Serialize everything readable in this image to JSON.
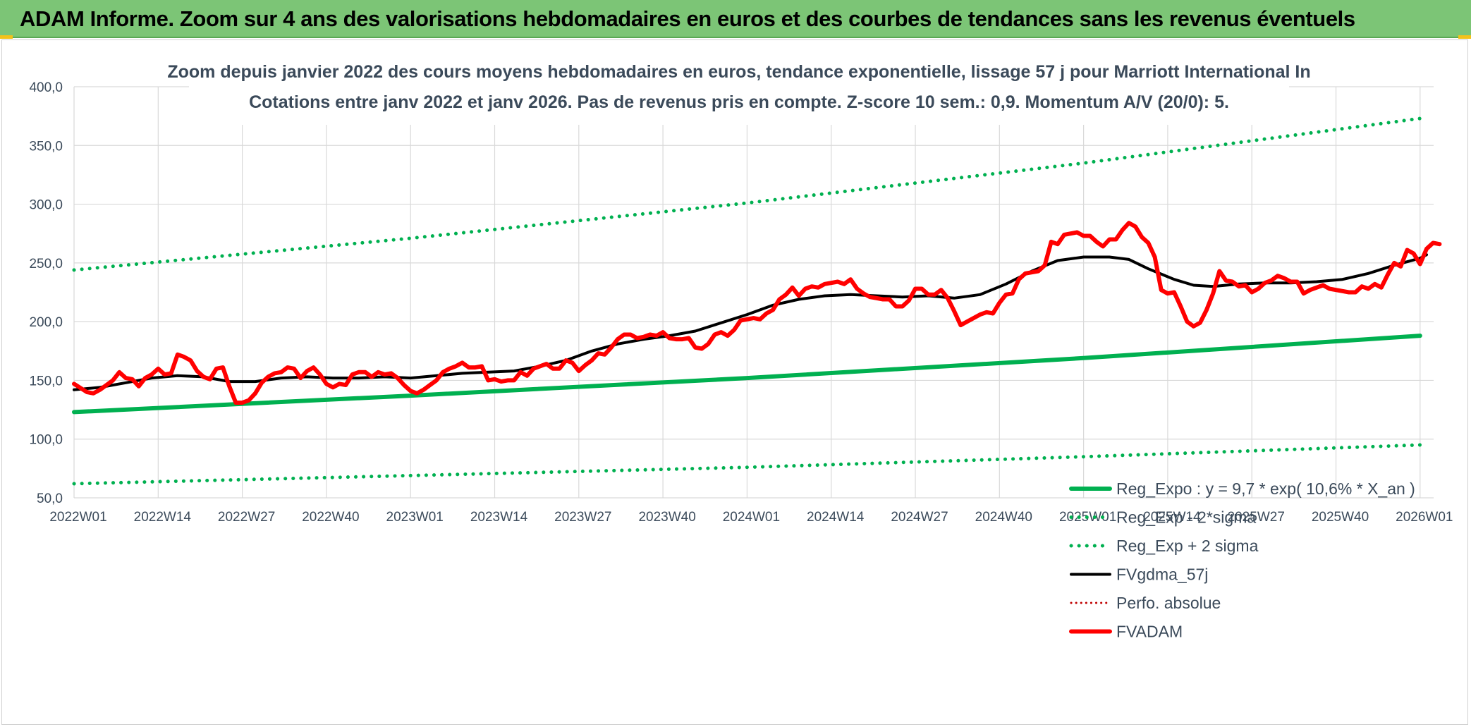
{
  "header": {
    "title": "ADAM Informe. Zoom sur 4 ans des valorisations hebdomadaires en euros et des courbes de tendances sans les revenus éventuels"
  },
  "colors": {
    "header_bg": "#7cc576",
    "trend_green": "#00b050",
    "price_red": "#ff0000",
    "smooth_black": "#000000",
    "grid": "#d9d9d9",
    "text": "#3b4a5a"
  },
  "chart_data": {
    "type": "line",
    "title": [
      "Zoom depuis janvier 2022 des cours moyens hebdomadaires en euros, tendance exponentielle, lissage 57 j pour Marriott International In",
      "Cotations entre janv 2022 et janv 2026. Pas de revenus pris en compte. Z-score 10 sem.: 0,9. Momentum A/V (20/0): 5."
    ],
    "xlabel": "",
    "ylabel": "",
    "ylim": [
      50,
      400
    ],
    "x_range_weeks": [
      0,
      209
    ],
    "yticks": [
      {
        "value": 50,
        "label": "50,0"
      },
      {
        "value": 100,
        "label": "100,0"
      },
      {
        "value": 150,
        "label": "150,0"
      },
      {
        "value": 200,
        "label": "200,0"
      },
      {
        "value": 250,
        "label": "250,0"
      },
      {
        "value": 300,
        "label": "300,0"
      },
      {
        "value": 350,
        "label": "350,0"
      },
      {
        "value": 400,
        "label": "400,0"
      }
    ],
    "xticks": [
      {
        "week": 0,
        "label": "2022W01"
      },
      {
        "week": 13,
        "label": "2022W14"
      },
      {
        "week": 26,
        "label": "2022W27"
      },
      {
        "week": 39,
        "label": "2022W40"
      },
      {
        "week": 52,
        "label": "2023W01"
      },
      {
        "week": 65,
        "label": "2023W14"
      },
      {
        "week": 78,
        "label": "2023W27"
      },
      {
        "week": 91,
        "label": "2023W40"
      },
      {
        "week": 104,
        "label": "2024W01"
      },
      {
        "week": 117,
        "label": "2024W14"
      },
      {
        "week": 130,
        "label": "2024W27"
      },
      {
        "week": 143,
        "label": "2024W40"
      },
      {
        "week": 156,
        "label": "2025W01"
      },
      {
        "week": 169,
        "label": "2025W14"
      },
      {
        "week": 182,
        "label": "2025W27"
      },
      {
        "week": 195,
        "label": "2025W40"
      },
      {
        "week": 208,
        "label": "2026W01"
      }
    ],
    "grid": true,
    "legend_position": "bottom-right",
    "series": [
      {
        "name": "Reg_Expo : y = 9,7 * exp( 10,6% *  X_an )",
        "style": "solid-thick",
        "color": "#00b050",
        "points": [
          [
            0,
            123
          ],
          [
            52,
            137
          ],
          [
            104,
            152
          ],
          [
            156,
            169
          ],
          [
            208,
            188
          ]
        ]
      },
      {
        "name": "Reg_Exp - 2*sigma",
        "style": "dotted",
        "color": "#00b050",
        "points": [
          [
            0,
            62
          ],
          [
            52,
            69
          ],
          [
            104,
            76
          ],
          [
            156,
            85
          ],
          [
            208,
            95
          ]
        ]
      },
      {
        "name": "Reg_Exp + 2 sigma",
        "style": "dotted",
        "color": "#00b050",
        "points": [
          [
            0,
            244
          ],
          [
            52,
            271
          ],
          [
            104,
            301
          ],
          [
            156,
            335
          ],
          [
            208,
            373
          ]
        ]
      },
      {
        "name": "FVgdma_57j",
        "style": "solid",
        "color": "#000000",
        "points": [
          [
            0,
            142
          ],
          [
            4,
            144
          ],
          [
            8,
            148
          ],
          [
            12,
            152
          ],
          [
            16,
            154
          ],
          [
            20,
            153
          ],
          [
            24,
            149
          ],
          [
            28,
            149
          ],
          [
            32,
            152
          ],
          [
            36,
            153
          ],
          [
            40,
            152
          ],
          [
            44,
            152
          ],
          [
            48,
            153
          ],
          [
            52,
            152
          ],
          [
            56,
            154
          ],
          [
            60,
            156
          ],
          [
            64,
            157
          ],
          [
            68,
            158
          ],
          [
            72,
            162
          ],
          [
            76,
            167
          ],
          [
            80,
            175
          ],
          [
            84,
            181
          ],
          [
            88,
            185
          ],
          [
            92,
            188
          ],
          [
            96,
            192
          ],
          [
            100,
            199
          ],
          [
            104,
            206
          ],
          [
            108,
            214
          ],
          [
            112,
            219
          ],
          [
            116,
            222
          ],
          [
            120,
            223
          ],
          [
            124,
            222
          ],
          [
            128,
            221
          ],
          [
            132,
            222
          ],
          [
            136,
            220
          ],
          [
            140,
            223
          ],
          [
            144,
            232
          ],
          [
            148,
            243
          ],
          [
            152,
            252
          ],
          [
            156,
            255
          ],
          [
            160,
            255
          ],
          [
            163,
            253
          ],
          [
            166,
            245
          ],
          [
            170,
            236
          ],
          [
            173,
            231
          ],
          [
            176,
            230
          ],
          [
            180,
            232
          ],
          [
            184,
            233
          ],
          [
            188,
            233
          ],
          [
            192,
            234
          ],
          [
            196,
            236
          ],
          [
            200,
            241
          ],
          [
            204,
            248
          ],
          [
            208,
            254
          ],
          [
            209,
            257
          ]
        ]
      },
      {
        "name": "Perfo. absolue",
        "style": "dotted-thin",
        "color": "#c00000",
        "points": []
      },
      {
        "name": "FVADAM",
        "style": "solid-thick",
        "color": "#ff0000",
        "points": [
          [
            0,
            147
          ],
          [
            2,
            140
          ],
          [
            3,
            139
          ],
          [
            4,
            142
          ],
          [
            6,
            150
          ],
          [
            7,
            157
          ],
          [
            8,
            152
          ],
          [
            9,
            151
          ],
          [
            10,
            145
          ],
          [
            11,
            152
          ],
          [
            12,
            155
          ],
          [
            13,
            160
          ],
          [
            14,
            155
          ],
          [
            15,
            156
          ],
          [
            16,
            172
          ],
          [
            17,
            170
          ],
          [
            18,
            167
          ],
          [
            19,
            158
          ],
          [
            20,
            153
          ],
          [
            21,
            151
          ],
          [
            22,
            160
          ],
          [
            23,
            161
          ],
          [
            24,
            145
          ],
          [
            25,
            131
          ],
          [
            26,
            131
          ],
          [
            27,
            133
          ],
          [
            28,
            139
          ],
          [
            29,
            148
          ],
          [
            30,
            153
          ],
          [
            31,
            156
          ],
          [
            32,
            157
          ],
          [
            33,
            161
          ],
          [
            34,
            160
          ],
          [
            35,
            152
          ],
          [
            36,
            158
          ],
          [
            37,
            161
          ],
          [
            38,
            155
          ],
          [
            39,
            147
          ],
          [
            40,
            144
          ],
          [
            41,
            147
          ],
          [
            42,
            146
          ],
          [
            43,
            155
          ],
          [
            44,
            157
          ],
          [
            45,
            157
          ],
          [
            46,
            153
          ],
          [
            47,
            157
          ],
          [
            48,
            155
          ],
          [
            49,
            156
          ],
          [
            50,
            152
          ],
          [
            51,
            146
          ],
          [
            52,
            141
          ],
          [
            53,
            139
          ],
          [
            54,
            142
          ],
          [
            55,
            146
          ],
          [
            56,
            150
          ],
          [
            57,
            157
          ],
          [
            58,
            160
          ],
          [
            59,
            162
          ],
          [
            60,
            165
          ],
          [
            61,
            161
          ],
          [
            62,
            161
          ],
          [
            63,
            162
          ],
          [
            64,
            150
          ],
          [
            65,
            151
          ],
          [
            66,
            149
          ],
          [
            67,
            150
          ],
          [
            68,
            150
          ],
          [
            69,
            157
          ],
          [
            70,
            154
          ],
          [
            71,
            160
          ],
          [
            72,
            162
          ],
          [
            73,
            164
          ],
          [
            74,
            160
          ],
          [
            75,
            160
          ],
          [
            76,
            167
          ],
          [
            77,
            165
          ],
          [
            78,
            158
          ],
          [
            79,
            163
          ],
          [
            80,
            167
          ],
          [
            81,
            173
          ],
          [
            82,
            172
          ],
          [
            83,
            178
          ],
          [
            84,
            185
          ],
          [
            85,
            189
          ],
          [
            86,
            189
          ],
          [
            87,
            186
          ],
          [
            88,
            187
          ],
          [
            89,
            189
          ],
          [
            90,
            188
          ],
          [
            91,
            191
          ],
          [
            92,
            186
          ],
          [
            93,
            185
          ],
          [
            94,
            185
          ],
          [
            95,
            186
          ],
          [
            96,
            178
          ],
          [
            97,
            177
          ],
          [
            98,
            181
          ],
          [
            99,
            189
          ],
          [
            100,
            191
          ],
          [
            101,
            188
          ],
          [
            102,
            193
          ],
          [
            103,
            201
          ],
          [
            104,
            202
          ],
          [
            105,
            203
          ],
          [
            106,
            202
          ],
          [
            107,
            207
          ],
          [
            108,
            210
          ],
          [
            109,
            219
          ],
          [
            110,
            223
          ],
          [
            111,
            229
          ],
          [
            112,
            222
          ],
          [
            113,
            228
          ],
          [
            114,
            230
          ],
          [
            115,
            229
          ],
          [
            116,
            232
          ],
          [
            117,
            233
          ],
          [
            118,
            234
          ],
          [
            119,
            232
          ],
          [
            120,
            236
          ],
          [
            121,
            228
          ],
          [
            122,
            224
          ],
          [
            123,
            221
          ],
          [
            124,
            220
          ],
          [
            125,
            219
          ],
          [
            126,
            219
          ],
          [
            127,
            213
          ],
          [
            128,
            213
          ],
          [
            129,
            218
          ],
          [
            130,
            228
          ],
          [
            131,
            228
          ],
          [
            132,
            223
          ],
          [
            133,
            223
          ],
          [
            134,
            227
          ],
          [
            135,
            220
          ],
          [
            136,
            209
          ],
          [
            137,
            197
          ],
          [
            138,
            200
          ],
          [
            139,
            203
          ],
          [
            140,
            206
          ],
          [
            141,
            208
          ],
          [
            142,
            207
          ],
          [
            143,
            216
          ],
          [
            144,
            223
          ],
          [
            145,
            224
          ],
          [
            146,
            236
          ],
          [
            147,
            241
          ],
          [
            148,
            242
          ],
          [
            149,
            243
          ],
          [
            150,
            248
          ],
          [
            151,
            268
          ],
          [
            152,
            266
          ],
          [
            153,
            274
          ],
          [
            154,
            275
          ],
          [
            155,
            276
          ],
          [
            156,
            273
          ],
          [
            157,
            273
          ],
          [
            158,
            268
          ],
          [
            159,
            264
          ],
          [
            160,
            270
          ],
          [
            161,
            270
          ],
          [
            162,
            278
          ],
          [
            163,
            284
          ],
          [
            164,
            281
          ],
          [
            165,
            272
          ],
          [
            166,
            267
          ],
          [
            167,
            255
          ],
          [
            168,
            227
          ],
          [
            169,
            224
          ],
          [
            170,
            225
          ],
          [
            171,
            213
          ],
          [
            172,
            200
          ],
          [
            173,
            196
          ],
          [
            174,
            199
          ],
          [
            175,
            210
          ],
          [
            176,
            224
          ],
          [
            177,
            243
          ],
          [
            178,
            235
          ],
          [
            179,
            234
          ],
          [
            180,
            230
          ],
          [
            181,
            231
          ],
          [
            182,
            225
          ],
          [
            183,
            228
          ],
          [
            184,
            233
          ],
          [
            185,
            235
          ],
          [
            186,
            239
          ],
          [
            187,
            237
          ],
          [
            188,
            234
          ],
          [
            189,
            234
          ],
          [
            190,
            224
          ],
          [
            191,
            227
          ],
          [
            192,
            229
          ],
          [
            193,
            231
          ],
          [
            194,
            228
          ],
          [
            195,
            227
          ],
          [
            196,
            226
          ],
          [
            197,
            225
          ],
          [
            198,
            225
          ],
          [
            199,
            230
          ],
          [
            200,
            228
          ],
          [
            201,
            232
          ],
          [
            202,
            229
          ],
          [
            203,
            240
          ],
          [
            204,
            250
          ],
          [
            205,
            247
          ],
          [
            206,
            261
          ],
          [
            207,
            258
          ],
          [
            208,
            249
          ],
          [
            209,
            262
          ],
          [
            210,
            267
          ],
          [
            211,
            266
          ]
        ]
      }
    ]
  }
}
